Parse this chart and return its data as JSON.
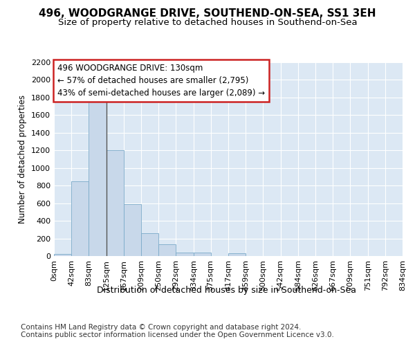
{
  "title1": "496, WOODGRANGE DRIVE, SOUTHEND-ON-SEA, SS1 3EH",
  "title2": "Size of property relative to detached houses in Southend-on-Sea",
  "xlabel": "Distribution of detached houses by size in Southend-on-Sea",
  "ylabel": "Number of detached properties",
  "footnote1": "Contains HM Land Registry data © Crown copyright and database right 2024.",
  "footnote2": "Contains public sector information licensed under the Open Government Licence v3.0.",
  "annotation_line1": "496 WOODGRANGE DRIVE: 130sqm",
  "annotation_line2": "← 57% of detached houses are smaller (2,795)",
  "annotation_line3": "43% of semi-detached houses are larger (2,089) →",
  "bar_edges": [
    0,
    42,
    83,
    125,
    167,
    209,
    250,
    292,
    334,
    375,
    417,
    459,
    500,
    542,
    584,
    626,
    667,
    709,
    751,
    792,
    834
  ],
  "bar_heights": [
    25,
    845,
    1800,
    1200,
    590,
    260,
    130,
    40,
    40,
    0,
    30,
    0,
    0,
    0,
    0,
    0,
    0,
    0,
    0,
    0
  ],
  "bar_color": "#c8d8ea",
  "bar_edge_color": "#7aaac8",
  "annotation_box_color": "#ffffff",
  "annotation_box_edge": "#cc2222",
  "vline_x": 125,
  "vline_color": "#555555",
  "bg_color": "#ffffff",
  "plot_bg_color": "#dce8f4",
  "ylim": [
    0,
    2200
  ],
  "yticks": [
    0,
    200,
    400,
    600,
    800,
    1000,
    1200,
    1400,
    1600,
    1800,
    2000,
    2200
  ],
  "grid_color": "#ffffff",
  "title1_fontsize": 11,
  "title2_fontsize": 9.5,
  "xlabel_fontsize": 9,
  "ylabel_fontsize": 8.5,
  "tick_fontsize": 8,
  "annotation_fontsize": 8.5,
  "footnote_fontsize": 7.5,
  "xtick_labels": [
    "0sqm",
    "42sqm",
    "83sqm",
    "125sqm",
    "167sqm",
    "209sqm",
    "250sqm",
    "292sqm",
    "334sqm",
    "375sqm",
    "417sqm",
    "459sqm",
    "500sqm",
    "542sqm",
    "584sqm",
    "626sqm",
    "667sqm",
    "709sqm",
    "751sqm",
    "792sqm",
    "834sqm"
  ]
}
